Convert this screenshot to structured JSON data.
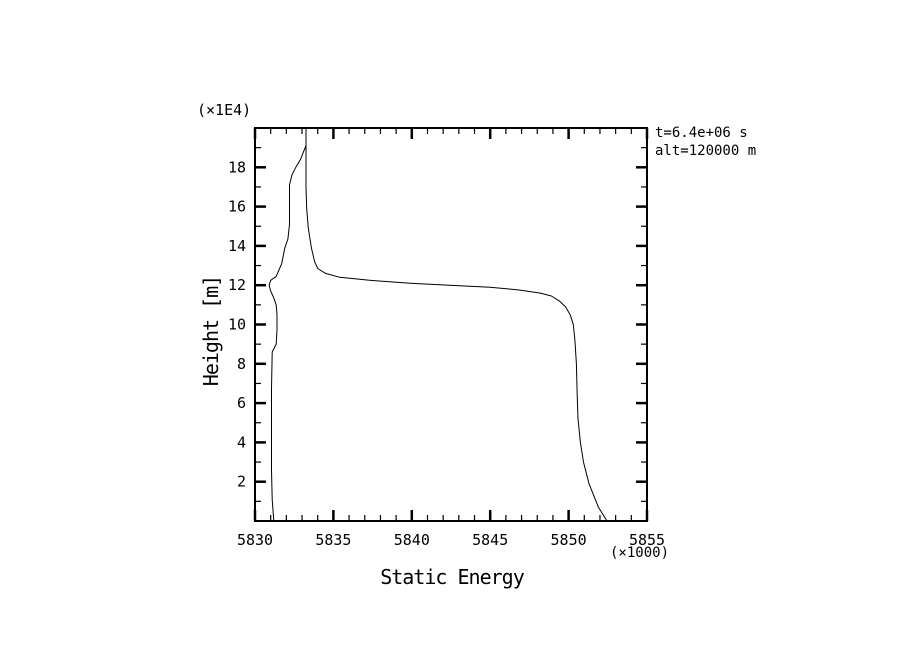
{
  "chart_data": {
    "type": "line",
    "title": "Static Energy",
    "xlabel": "Static Energy",
    "ylabel": "Height [m]",
    "x_unit_note": "(×1000)",
    "y_unit_note": "(×1E4)",
    "annotations": [
      "t=6.4e+06 s",
      "alt=120000 m"
    ],
    "xlim": [
      5830,
      5855
    ],
    "ylim": [
      0,
      20
    ],
    "x_major_ticks": [
      5830,
      5835,
      5840,
      5845,
      5850,
      5855
    ],
    "x_minor_step": 1,
    "y_major_ticks": [
      2,
      4,
      6,
      8,
      10,
      12,
      14,
      16,
      18
    ],
    "y_minor_step": 1,
    "grid": false,
    "background_color": "#ffffff",
    "line_color": "#000000",
    "series": [
      {
        "name": "static-energy-profile",
        "points": [
          [
            5852.45,
            0.0
          ],
          [
            5851.9,
            0.7
          ],
          [
            5851.3,
            1.9
          ],
          [
            5850.95,
            3.0
          ],
          [
            5850.75,
            4.0
          ],
          [
            5850.6,
            5.2
          ],
          [
            5850.55,
            6.4
          ],
          [
            5850.5,
            8.0
          ],
          [
            5850.4,
            9.2
          ],
          [
            5850.3,
            10.0
          ],
          [
            5850.1,
            10.5
          ],
          [
            5849.8,
            10.9
          ],
          [
            5849.4,
            11.2
          ],
          [
            5848.9,
            11.45
          ],
          [
            5848.2,
            11.6
          ],
          [
            5846.9,
            11.75
          ],
          [
            5845.0,
            11.9
          ],
          [
            5842.4,
            12.0
          ],
          [
            5839.9,
            12.1
          ],
          [
            5837.3,
            12.25
          ],
          [
            5835.4,
            12.4
          ],
          [
            5834.5,
            12.6
          ],
          [
            5834.0,
            12.85
          ],
          [
            5833.8,
            13.2
          ],
          [
            5833.6,
            13.9
          ],
          [
            5833.4,
            14.9
          ],
          [
            5833.3,
            15.9
          ],
          [
            5833.25,
            17.0
          ],
          [
            5833.25,
            18.5
          ],
          [
            5833.25,
            20.0
          ]
        ]
      },
      {
        "name": "reference-profile",
        "points": [
          [
            5831.2,
            0.0
          ],
          [
            5831.1,
            1.1
          ],
          [
            5831.05,
            2.6
          ],
          [
            5831.05,
            4.6
          ],
          [
            5831.05,
            6.7
          ],
          [
            5831.1,
            8.6
          ],
          [
            5831.35,
            9.0
          ],
          [
            5831.4,
            9.7
          ],
          [
            5831.4,
            10.5
          ],
          [
            5831.35,
            11.0
          ],
          [
            5831.2,
            11.35
          ],
          [
            5831.0,
            11.7
          ],
          [
            5830.9,
            12.0
          ],
          [
            5831.0,
            12.25
          ],
          [
            5831.35,
            12.45
          ],
          [
            5831.7,
            13.1
          ],
          [
            5831.9,
            13.9
          ],
          [
            5832.1,
            14.35
          ],
          [
            5832.2,
            15.1
          ],
          [
            5832.2,
            16.4
          ],
          [
            5832.2,
            17.1
          ],
          [
            5832.35,
            17.6
          ],
          [
            5832.6,
            18.0
          ],
          [
            5832.9,
            18.4
          ],
          [
            5833.1,
            18.8
          ],
          [
            5833.25,
            19.1
          ]
        ]
      }
    ]
  }
}
